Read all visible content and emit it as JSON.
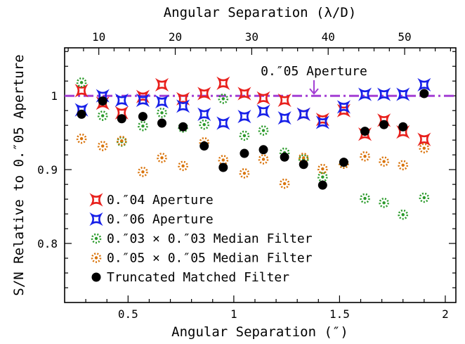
{
  "chart_data": {
    "type": "scatter",
    "xlabel": "Angular Separation (″)",
    "xlabel_top": "Angular Separation (λ/D)",
    "ylabel": "S/N Relative to 0.″05 Aperture",
    "xlim": [
      0.2,
      2.05
    ],
    "ylim": [
      0.72,
      1.065
    ],
    "xlim_top": [
      5.53,
      56.7
    ],
    "grid": false,
    "legend_position": "bottom-left",
    "x_ticks": [
      0.5,
      1,
      1.5,
      2
    ],
    "x_tick_labels": [
      "0.5",
      "1",
      "1.5",
      "2"
    ],
    "y_ticks": [
      0.8,
      0.9,
      1.0
    ],
    "y_tick_labels": [
      "0.8",
      "0.9",
      "1"
    ],
    "x_top_ticks": [
      10,
      20,
      30,
      40,
      50
    ],
    "x_top_tick_labels": [
      "10",
      "20",
      "30",
      "40",
      "50"
    ],
    "reference_line": {
      "y": 1.0,
      "label": "0.″05 Aperture",
      "color": "#a33fd4"
    },
    "x": [
      0.28,
      0.38,
      0.47,
      0.57,
      0.66,
      0.76,
      0.86,
      0.95,
      1.05,
      1.14,
      1.24,
      1.33,
      1.42,
      1.52,
      1.62,
      1.71,
      1.8,
      1.9
    ],
    "series": [
      {
        "name": "0.″04 Aperture",
        "marker": "star4",
        "color": "#e8201c",
        "values": [
          1.007,
          0.99,
          0.977,
          0.999,
          1.015,
          0.996,
          1.003,
          1.017,
          1.003,
          0.997,
          0.994,
          0.975,
          0.968,
          0.98,
          0.948,
          0.967,
          0.951,
          0.941
        ]
      },
      {
        "name": "0.″06 Aperture",
        "marker": "star4",
        "color": "#1720e8",
        "values": [
          0.981,
          1.0,
          0.994,
          0.994,
          0.992,
          0.986,
          0.975,
          0.963,
          0.972,
          0.979,
          0.97,
          0.975,
          0.964,
          0.985,
          1.002,
          1.002,
          1.002,
          1.015
        ]
      },
      {
        "name": "0.″03 × 0.″03 Median Filter",
        "marker": "dotted-circle",
        "color": "#2a9a2a",
        "values": [
          1.018,
          0.973,
          0.938,
          0.959,
          0.977,
          0.957,
          0.961,
          0.996,
          0.946,
          0.953,
          0.923,
          0.914,
          0.89,
          0.908,
          0.861,
          0.855,
          0.839,
          0.862
        ]
      },
      {
        "name": "0.″05 × 0.″05 Median Filter",
        "marker": "dotted-circle",
        "color": "#d9730a",
        "values": [
          0.942,
          0.932,
          0.939,
          0.897,
          0.916,
          0.905,
          0.937,
          0.913,
          0.895,
          0.914,
          0.881,
          0.916,
          0.901,
          0.908,
          0.918,
          0.911,
          0.906,
          0.929
        ]
      },
      {
        "name": "Truncated Matched Filter",
        "marker": "filled-circle",
        "color": "#000000",
        "values": [
          0.975,
          0.993,
          0.969,
          0.972,
          0.963,
          0.958,
          0.932,
          0.903,
          0.922,
          0.927,
          0.917,
          0.907,
          0.879,
          0.91,
          0.952,
          0.961,
          0.958,
          1.003
        ]
      }
    ]
  }
}
